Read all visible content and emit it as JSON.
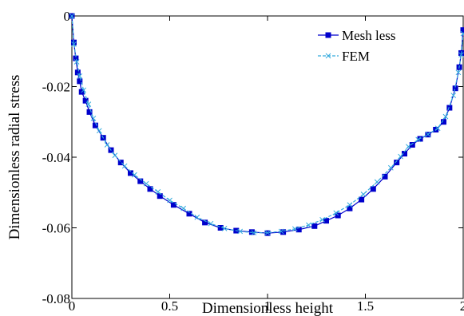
{
  "chart_data": {
    "type": "line",
    "title": "",
    "xlabel": "Dimensionless height",
    "ylabel": "Dimensionless radial stress",
    "xlim": [
      0,
      2
    ],
    "ylim": [
      -0.08,
      0
    ],
    "xticks": [
      0,
      0.5,
      1,
      1.5,
      2
    ],
    "xtick_labels": [
      "0",
      "0.5",
      "1",
      "1.5",
      "2"
    ],
    "yticks": [
      0,
      -0.02,
      -0.04,
      -0.06,
      -0.08
    ],
    "ytick_labels": [
      "0",
      "-0.02",
      "-0.04",
      "-0.06",
      "-0.08"
    ],
    "grid": false,
    "legend_position": "top-right",
    "series": [
      {
        "name": "Mesh less",
        "color": "#0000cc",
        "marker": "square",
        "x": [
          0.0,
          0.01,
          0.02,
          0.03,
          0.04,
          0.05,
          0.07,
          0.09,
          0.12,
          0.16,
          0.2,
          0.25,
          0.3,
          0.35,
          0.4,
          0.45,
          0.52,
          0.6,
          0.68,
          0.76,
          0.84,
          0.92,
          1.0,
          1.08,
          1.16,
          1.24,
          1.3,
          1.36,
          1.42,
          1.48,
          1.54,
          1.6,
          1.66,
          1.7,
          1.74,
          1.78,
          1.82,
          1.86,
          1.9,
          1.93,
          1.96,
          1.98,
          1.99,
          2.0
        ],
        "y": [
          0.0,
          -0.0075,
          -0.012,
          -0.016,
          -0.0185,
          -0.0215,
          -0.024,
          -0.0272,
          -0.031,
          -0.0345,
          -0.038,
          -0.0415,
          -0.0445,
          -0.0468,
          -0.049,
          -0.051,
          -0.0535,
          -0.056,
          -0.0585,
          -0.06,
          -0.0608,
          -0.0612,
          -0.0615,
          -0.0612,
          -0.0605,
          -0.0595,
          -0.058,
          -0.0565,
          -0.0545,
          -0.052,
          -0.049,
          -0.0455,
          -0.0415,
          -0.039,
          -0.0365,
          -0.0348,
          -0.0336,
          -0.0322,
          -0.03,
          -0.026,
          -0.0205,
          -0.0145,
          -0.0105,
          -0.004
        ]
      },
      {
        "name": "FEM",
        "color": "#33aadd",
        "marker": "x",
        "x": [
          0.0,
          0.01,
          0.025,
          0.04,
          0.06,
          0.085,
          0.11,
          0.14,
          0.18,
          0.22,
          0.27,
          0.32,
          0.38,
          0.44,
          0.5,
          0.57,
          0.64,
          0.71,
          0.78,
          0.86,
          0.93,
          1.0,
          1.07,
          1.14,
          1.21,
          1.28,
          1.35,
          1.42,
          1.49,
          1.56,
          1.63,
          1.68,
          1.72,
          1.77,
          1.82,
          1.87,
          1.91,
          1.95,
          1.975,
          1.99,
          2.0
        ],
        "y": [
          0.0,
          -0.008,
          -0.013,
          -0.017,
          -0.021,
          -0.025,
          -0.029,
          -0.0325,
          -0.0365,
          -0.0395,
          -0.0425,
          -0.045,
          -0.0475,
          -0.0498,
          -0.0522,
          -0.0545,
          -0.057,
          -0.0588,
          -0.0602,
          -0.061,
          -0.0614,
          -0.0614,
          -0.061,
          -0.0603,
          -0.0592,
          -0.0577,
          -0.0558,
          -0.0535,
          -0.0505,
          -0.047,
          -0.043,
          -0.0398,
          -0.037,
          -0.035,
          -0.0335,
          -0.0318,
          -0.0285,
          -0.0225,
          -0.016,
          -0.011,
          -0.005
        ]
      }
    ]
  }
}
